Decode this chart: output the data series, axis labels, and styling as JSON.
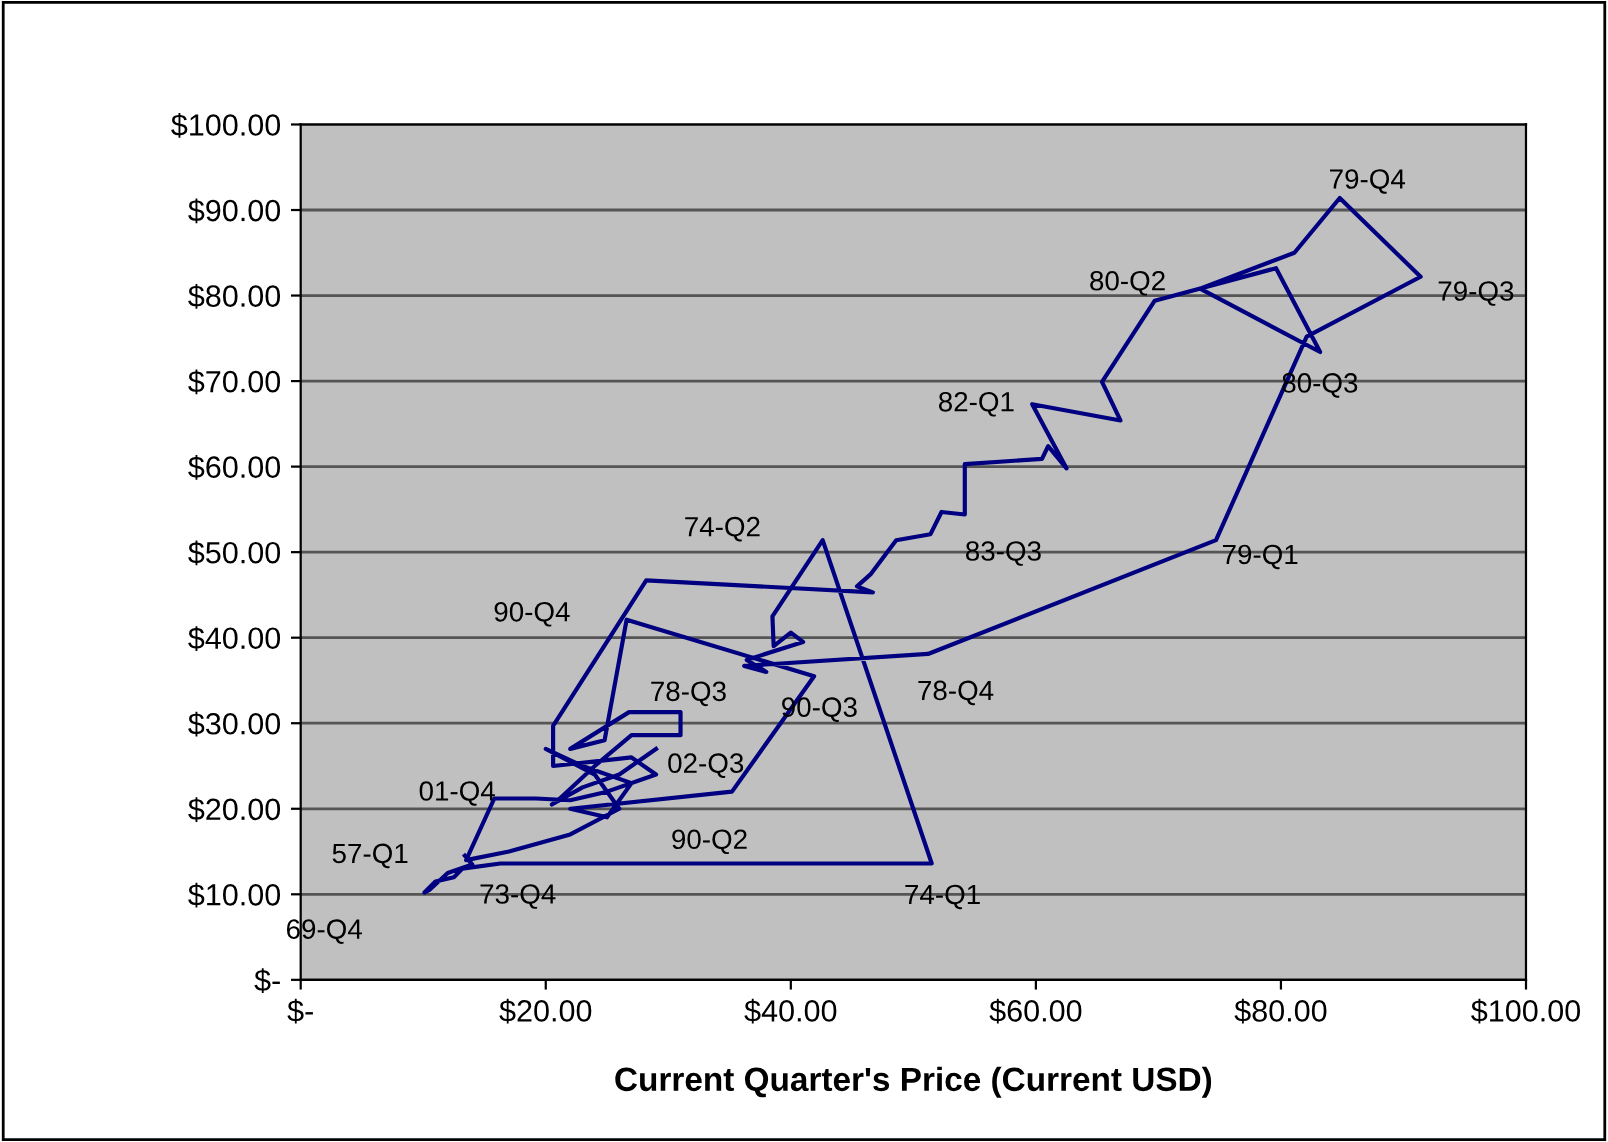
{
  "chart_data": {
    "type": "line",
    "xlabel": "Current Quarter's Price (Current USD)",
    "series": [
      {
        "color": "#000080",
        "x": [
          13.4,
          14.0,
          12.0,
          10.5,
          10.1,
          11.0,
          12.5,
          13.2,
          16.3,
          51.5,
          42.6,
          38.5,
          38.6,
          40.0,
          41.0,
          36.4,
          38.0,
          36.2,
          51.2,
          74.7,
          82.1,
          91.4,
          84.8,
          81.1,
          73.4,
          83.2,
          79.6,
          69.7,
          65.4,
          66.9,
          59.7,
          62.5,
          61.0,
          60.5,
          54.2,
          54.2,
          52.3,
          51.4,
          48.6,
          46.5,
          45.4,
          46.7,
          28.2,
          20.6,
          20.6,
          27.0,
          29.0,
          25.0,
          22.0,
          19.2,
          15.8,
          13.5,
          17.0,
          22.0,
          26.0,
          24.0,
          20.0,
          23.0,
          27.0,
          25.0,
          22.0,
          35.2,
          41.9,
          26.6,
          24.8,
          22.0,
          26.8,
          31.0,
          31.0,
          27.0,
          24.0,
          21.0,
          20.5,
          23.0,
          26.0,
          28.0,
          29.0
        ],
        "values": [
          14.5,
          13.5,
          12.5,
          10.5,
          10.2,
          11.5,
          12.0,
          13.0,
          13.6,
          13.6,
          51.4,
          42.5,
          39.0,
          40.6,
          39.5,
          37.4,
          36.0,
          36.7,
          38.1,
          51.4,
          75.2,
          82.2,
          91.4,
          85.0,
          80.8,
          73.4,
          83.2,
          79.4,
          69.9,
          65.4,
          67.3,
          59.8,
          62.4,
          60.9,
          60.3,
          54.4,
          54.7,
          52.1,
          51.4,
          47.4,
          46.0,
          45.3,
          46.7,
          29.7,
          25.0,
          26.0,
          24.0,
          22.0,
          21.0,
          21.2,
          21.2,
          14.0,
          15.0,
          17.0,
          20.0,
          24.0,
          27.0,
          25.0,
          23.0,
          19.0,
          20.0,
          22.0,
          35.5,
          42.1,
          28.0,
          27.0,
          31.3,
          31.3,
          28.6,
          28.6,
          25.0,
          21.0,
          20.5,
          22.5,
          24.0,
          26.0,
          27.0
        ]
      }
    ],
    "xlim": [
      0,
      100
    ],
    "xticks": [
      {
        "value": 0,
        "label": "$-"
      },
      {
        "value": 20,
        "label": "$20.00"
      },
      {
        "value": 40,
        "label": "$40.00"
      },
      {
        "value": 60,
        "label": "$60.00"
      },
      {
        "value": 80,
        "label": "$80.00"
      },
      {
        "value": 100,
        "label": "$100.00"
      }
    ],
    "ylim": [
      0,
      100
    ],
    "yticks": [
      {
        "value": 0,
        "label": "$-"
      },
      {
        "value": 10,
        "label": "$10.00"
      },
      {
        "value": 20,
        "label": "$20.00"
      },
      {
        "value": 30,
        "label": "$30.00"
      },
      {
        "value": 40,
        "label": "$40.00"
      },
      {
        "value": 50,
        "label": "$50.00"
      },
      {
        "value": 60,
        "label": "$60.00"
      },
      {
        "value": 70,
        "label": "$70.00"
      },
      {
        "value": 80,
        "label": "$80.00"
      },
      {
        "value": 90,
        "label": "$90.00"
      },
      {
        "value": 100,
        "label": "$100.00"
      }
    ],
    "grid": "y",
    "marker": "none",
    "line_style": "solid",
    "legend": false,
    "annotations": [
      {
        "text": "57-Q1",
        "x": 13.4,
        "y": 14.5
      },
      {
        "text": "69-Q4",
        "x": 10.1,
        "y": 10.2
      },
      {
        "text": "73-Q4",
        "x": 13.2,
        "y": 13.0
      },
      {
        "text": "74-Q1",
        "x": 51.5,
        "y": 13.6
      },
      {
        "text": "74-Q2",
        "x": 42.6,
        "y": 51.4
      },
      {
        "text": "78-Q3",
        "x": 36.2,
        "y": 36.7
      },
      {
        "text": "78-Q4",
        "x": 51.2,
        "y": 38.1
      },
      {
        "text": "79-Q1",
        "x": 74.7,
        "y": 51.4
      },
      {
        "text": "79-Q3",
        "x": 91.4,
        "y": 82.2
      },
      {
        "text": "79-Q4",
        "x": 84.8,
        "y": 91.4
      },
      {
        "text": "80-Q2",
        "x": 73.4,
        "y": 80.8
      },
      {
        "text": "80-Q3",
        "x": 83.2,
        "y": 73.4
      },
      {
        "text": "82-Q1",
        "x": 59.7,
        "y": 67.3
      },
      {
        "text": "83-Q3",
        "x": 54.2,
        "y": 54.4
      },
      {
        "text": "90-Q2",
        "x": 35.2,
        "y": 22.0
      },
      {
        "text": "90-Q3",
        "x": 41.9,
        "y": 35.5
      },
      {
        "text": "90-Q4",
        "x": 26.6,
        "y": 42.1
      },
      {
        "text": "01-Q4",
        "x": 20.5,
        "y": 20.5
      },
      {
        "text": "02-Q3",
        "x": 29.0,
        "y": 27.0
      }
    ]
  }
}
